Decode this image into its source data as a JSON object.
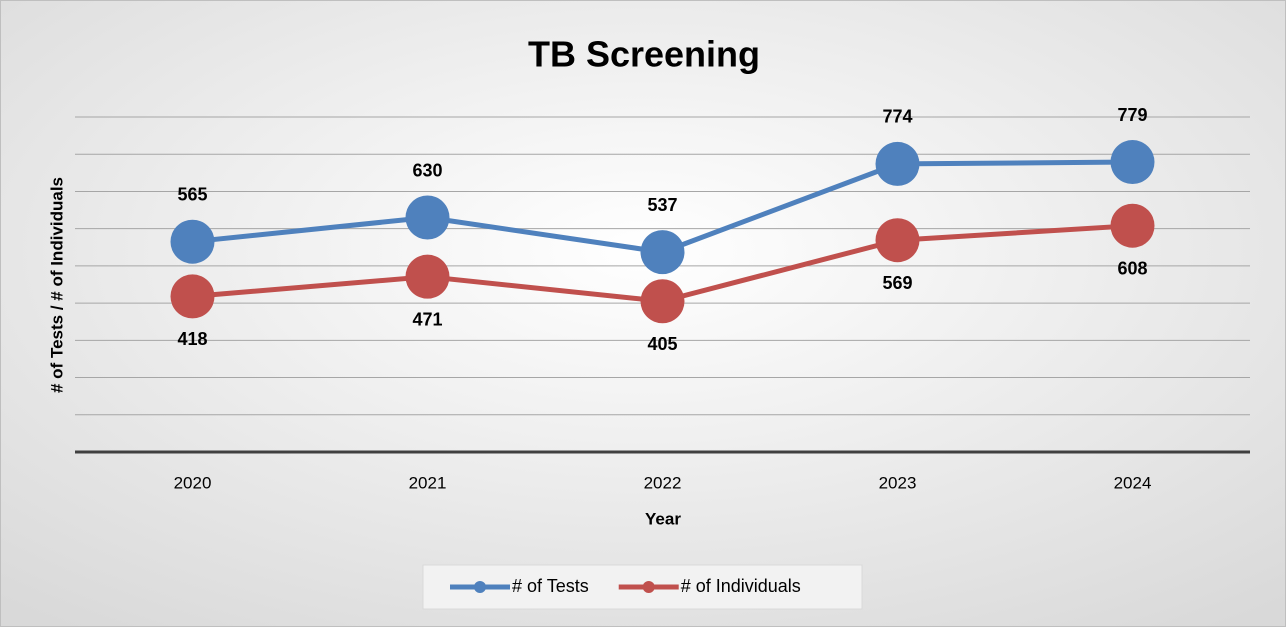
{
  "chart_data": {
    "type": "line",
    "title": "TB Screening",
    "x_label": "Year",
    "y_label": "# of Tests / # of Individuals",
    "categories": [
      "2020",
      "2021",
      "2022",
      "2023",
      "2024"
    ],
    "series": [
      {
        "name": "# of Tests",
        "color": "#4f81bd",
        "values": [
          565,
          630,
          537,
          774,
          779
        ]
      },
      {
        "name": "# of Individuals",
        "color": "#c0504d",
        "values": [
          418,
          471,
          405,
          569,
          608
        ]
      }
    ],
    "ylim": [
      0,
      900
    ],
    "yticks": [
      0,
      100,
      200,
      300,
      400,
      500,
      600,
      700,
      800,
      900
    ],
    "grid": true,
    "legend": "bottom"
  }
}
